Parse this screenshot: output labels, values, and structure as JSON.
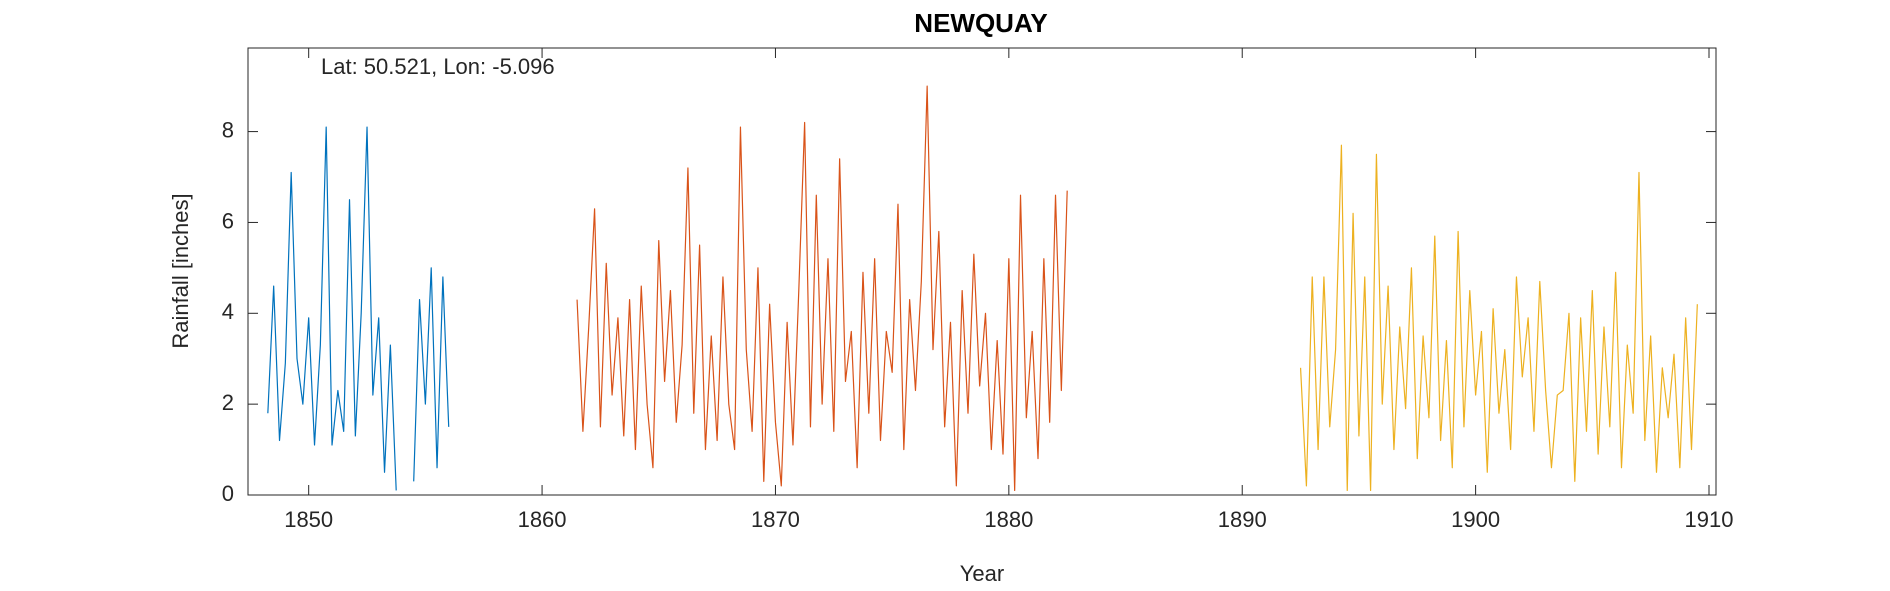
{
  "chart_data": {
    "type": "line",
    "title": "NEWQUAY",
    "annotation": "Lat: 50.521, Lon: -5.096",
    "x_label": "Year",
    "y_label": "Rainfall [inches]",
    "xlim": [
      1847.4,
      1910.3
    ],
    "ylim": [
      0,
      9.84
    ],
    "xticks": [
      1850,
      1860,
      1870,
      1880,
      1890,
      1900,
      1910
    ],
    "yticks": [
      0,
      2,
      4,
      6,
      8
    ],
    "grid": false,
    "series": [
      {
        "color": "#0072BD",
        "x": [
          1848.25,
          1848.5,
          1848.75,
          1849,
          1849.25,
          1849.5,
          1849.75,
          1850,
          1850.25,
          1850.5,
          1850.75,
          1851,
          1851.25,
          1851.5,
          1851.75,
          1852,
          1852.25,
          1852.5,
          1852.75,
          1853,
          1853.25,
          1853.5,
          1853.75,
          1854,
          1854.25,
          1854.5,
          1854.75,
          1855,
          1855.25,
          1855.5,
          1855.75,
          1856
        ],
        "values": [
          1.8,
          4.6,
          1.2,
          2.9,
          7.1,
          3.0,
          2.0,
          3.9,
          1.1,
          3.3,
          8.1,
          1.1,
          2.3,
          1.4,
          6.5,
          1.3,
          4.0,
          8.1,
          2.2,
          3.9,
          0.5,
          3.3,
          0.1,
          null,
          null,
          0.3,
          4.3,
          2.0,
          5.0,
          0.6,
          4.8,
          1.5
        ]
      },
      {
        "color": "#D95319",
        "x": [
          1861.5,
          1861.75,
          1862,
          1862.25,
          1862.5,
          1862.75,
          1863,
          1863.25,
          1863.5,
          1863.75,
          1864,
          1864.25,
          1864.5,
          1864.75,
          1865,
          1865.25,
          1865.5,
          1865.75,
          1866,
          1866.25,
          1866.5,
          1866.75,
          1867,
          1867.25,
          1867.5,
          1867.75,
          1868,
          1868.25,
          1868.5,
          1868.75,
          1869,
          1869.25,
          1869.5,
          1869.75,
          1870,
          1870.25,
          1870.5,
          1870.75,
          1871,
          1871.25,
          1871.5,
          1871.75,
          1872,
          1872.25,
          1872.5,
          1872.75,
          1873,
          1873.25,
          1873.5,
          1873.75,
          1874,
          1874.25,
          1874.5,
          1874.75,
          1875,
          1875.25,
          1875.5,
          1875.75,
          1876,
          1876.25,
          1876.5,
          1876.75,
          1877,
          1877.25,
          1877.5,
          1877.75,
          1878,
          1878.25,
          1878.5,
          1878.75,
          1879,
          1879.25,
          1879.5,
          1879.75,
          1880,
          1880.25,
          1880.5,
          1880.75,
          1881,
          1881.25,
          1881.5,
          1881.75,
          1882,
          1882.25,
          1882.5
        ],
        "values": [
          4.3,
          1.4,
          3.7,
          6.3,
          1.5,
          5.1,
          2.2,
          3.9,
          1.3,
          4.3,
          1.0,
          4.6,
          2.0,
          0.6,
          5.6,
          2.5,
          4.5,
          1.6,
          3.3,
          7.2,
          1.8,
          5.5,
          1.0,
          3.5,
          1.2,
          4.8,
          2.0,
          1.0,
          8.1,
          3.2,
          1.4,
          5.0,
          0.3,
          4.2,
          1.6,
          0.2,
          3.8,
          1.1,
          4.5,
          8.2,
          1.5,
          6.6,
          2.0,
          5.2,
          1.4,
          7.4,
          2.5,
          3.6,
          0.6,
          4.9,
          1.8,
          5.2,
          1.2,
          3.6,
          2.7,
          6.4,
          1.0,
          4.3,
          2.3,
          4.7,
          9.0,
          3.2,
          5.8,
          1.5,
          3.8,
          0.2,
          4.5,
          1.8,
          5.3,
          2.4,
          4.0,
          1.0,
          3.4,
          0.9,
          5.2,
          0.1,
          6.6,
          1.7,
          3.6,
          0.8,
          5.2,
          1.6,
          6.6,
          2.3,
          6.7
        ]
      },
      {
        "color": "#EDB120",
        "x": [
          1892.5,
          1892.75,
          1893,
          1893.25,
          1893.5,
          1893.75,
          1894,
          1894.25,
          1894.5,
          1894.75,
          1895,
          1895.25,
          1895.5,
          1895.75,
          1896,
          1896.25,
          1896.5,
          1896.75,
          1897,
          1897.25,
          1897.5,
          1897.75,
          1898,
          1898.25,
          1898.5,
          1898.75,
          1899,
          1899.25,
          1899.5,
          1899.75,
          1900,
          1900.25,
          1900.5,
          1900.75,
          1901,
          1901.25,
          1901.5,
          1901.75,
          1902,
          1902.25,
          1902.5,
          1902.75,
          1903,
          1903.25,
          1903.5,
          1903.75,
          1904,
          1904.25,
          1904.5,
          1904.75,
          1905,
          1905.25,
          1905.5,
          1905.75,
          1906,
          1906.25,
          1906.5,
          1906.75,
          1907,
          1907.25,
          1907.5,
          1907.75,
          1908,
          1908.25,
          1908.5,
          1908.75,
          1909,
          1909.25,
          1909.5
        ],
        "values": [
          2.8,
          0.2,
          4.8,
          1.0,
          4.8,
          1.5,
          3.2,
          7.7,
          0.1,
          6.2,
          1.3,
          4.8,
          0.1,
          7.5,
          2.0,
          4.6,
          1.0,
          3.7,
          1.9,
          5.0,
          0.8,
          3.5,
          1.7,
          5.7,
          1.2,
          3.4,
          0.6,
          5.8,
          1.5,
          4.5,
          2.2,
          3.6,
          0.5,
          4.1,
          1.8,
          3.2,
          1.0,
          4.8,
          2.6,
          3.9,
          1.4,
          4.7,
          2.3,
          0.6,
          2.2,
          2.3,
          4.0,
          0.3,
          3.9,
          1.4,
          4.5,
          0.9,
          3.7,
          1.5,
          4.9,
          0.6,
          3.3,
          1.8,
          7.1,
          1.2,
          3.5,
          0.5,
          2.8,
          1.7,
          3.1,
          0.6,
          3.9,
          1.0,
          4.2
        ]
      }
    ]
  }
}
